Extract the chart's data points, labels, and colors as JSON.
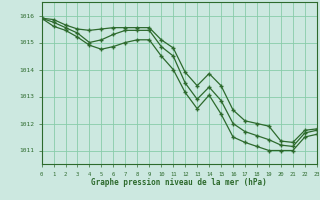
{
  "background_color": "#cce8e0",
  "grid_color": "#88ccaa",
  "line_color": "#2d6a2d",
  "xlabel": "Graphe pression niveau de la mer (hPa)",
  "xlim": [
    0,
    23
  ],
  "ylim": [
    1010.5,
    1016.5
  ],
  "yticks": [
    1011,
    1012,
    1013,
    1014,
    1015,
    1016
  ],
  "xtick_labels": [
    "0",
    "1",
    "2",
    "3",
    "4",
    "5",
    "6",
    "7",
    "8",
    "9",
    "10",
    "11",
    "12",
    "13",
    "14",
    "15",
    "16",
    "17",
    "18",
    "19",
    "20",
    "21",
    "22",
    "23"
  ],
  "series1_x": [
    0,
    1,
    2,
    3,
    4,
    5,
    6,
    7,
    8,
    9,
    10,
    11,
    12,
    13,
    14,
    15,
    16,
    17,
    18,
    19,
    20,
    21,
    22,
    23
  ],
  "series1_y": [
    1015.9,
    1015.85,
    1015.65,
    1015.5,
    1015.45,
    1015.5,
    1015.55,
    1015.55,
    1015.55,
    1015.55,
    1015.1,
    1014.8,
    1013.9,
    1013.4,
    1013.85,
    1013.4,
    1012.5,
    1012.1,
    1012.0,
    1011.9,
    1011.35,
    1011.3,
    1011.75,
    1011.8
  ],
  "series2_x": [
    0,
    1,
    2,
    3,
    4,
    5,
    6,
    7,
    8,
    9,
    10,
    11,
    12,
    13,
    14,
    15,
    16,
    17,
    18,
    19,
    20,
    21,
    22,
    23
  ],
  "series2_y": [
    1015.9,
    1015.75,
    1015.55,
    1015.35,
    1015.0,
    1015.1,
    1015.3,
    1015.45,
    1015.45,
    1015.45,
    1014.85,
    1014.5,
    1013.5,
    1012.9,
    1013.35,
    1012.85,
    1012.0,
    1011.7,
    1011.55,
    1011.4,
    1011.2,
    1011.15,
    1011.65,
    1011.75
  ],
  "series3_x": [
    0,
    1,
    2,
    3,
    4,
    5,
    6,
    7,
    8,
    9,
    10,
    11,
    12,
    13,
    14,
    15,
    16,
    17,
    18,
    19,
    20,
    21,
    22,
    23
  ],
  "series3_y": [
    1015.9,
    1015.6,
    1015.45,
    1015.2,
    1014.9,
    1014.75,
    1014.85,
    1015.0,
    1015.1,
    1015.1,
    1014.5,
    1014.0,
    1013.15,
    1012.55,
    1013.05,
    1012.35,
    1011.5,
    1011.3,
    1011.15,
    1011.0,
    1011.0,
    1011.0,
    1011.5,
    1011.6
  ]
}
